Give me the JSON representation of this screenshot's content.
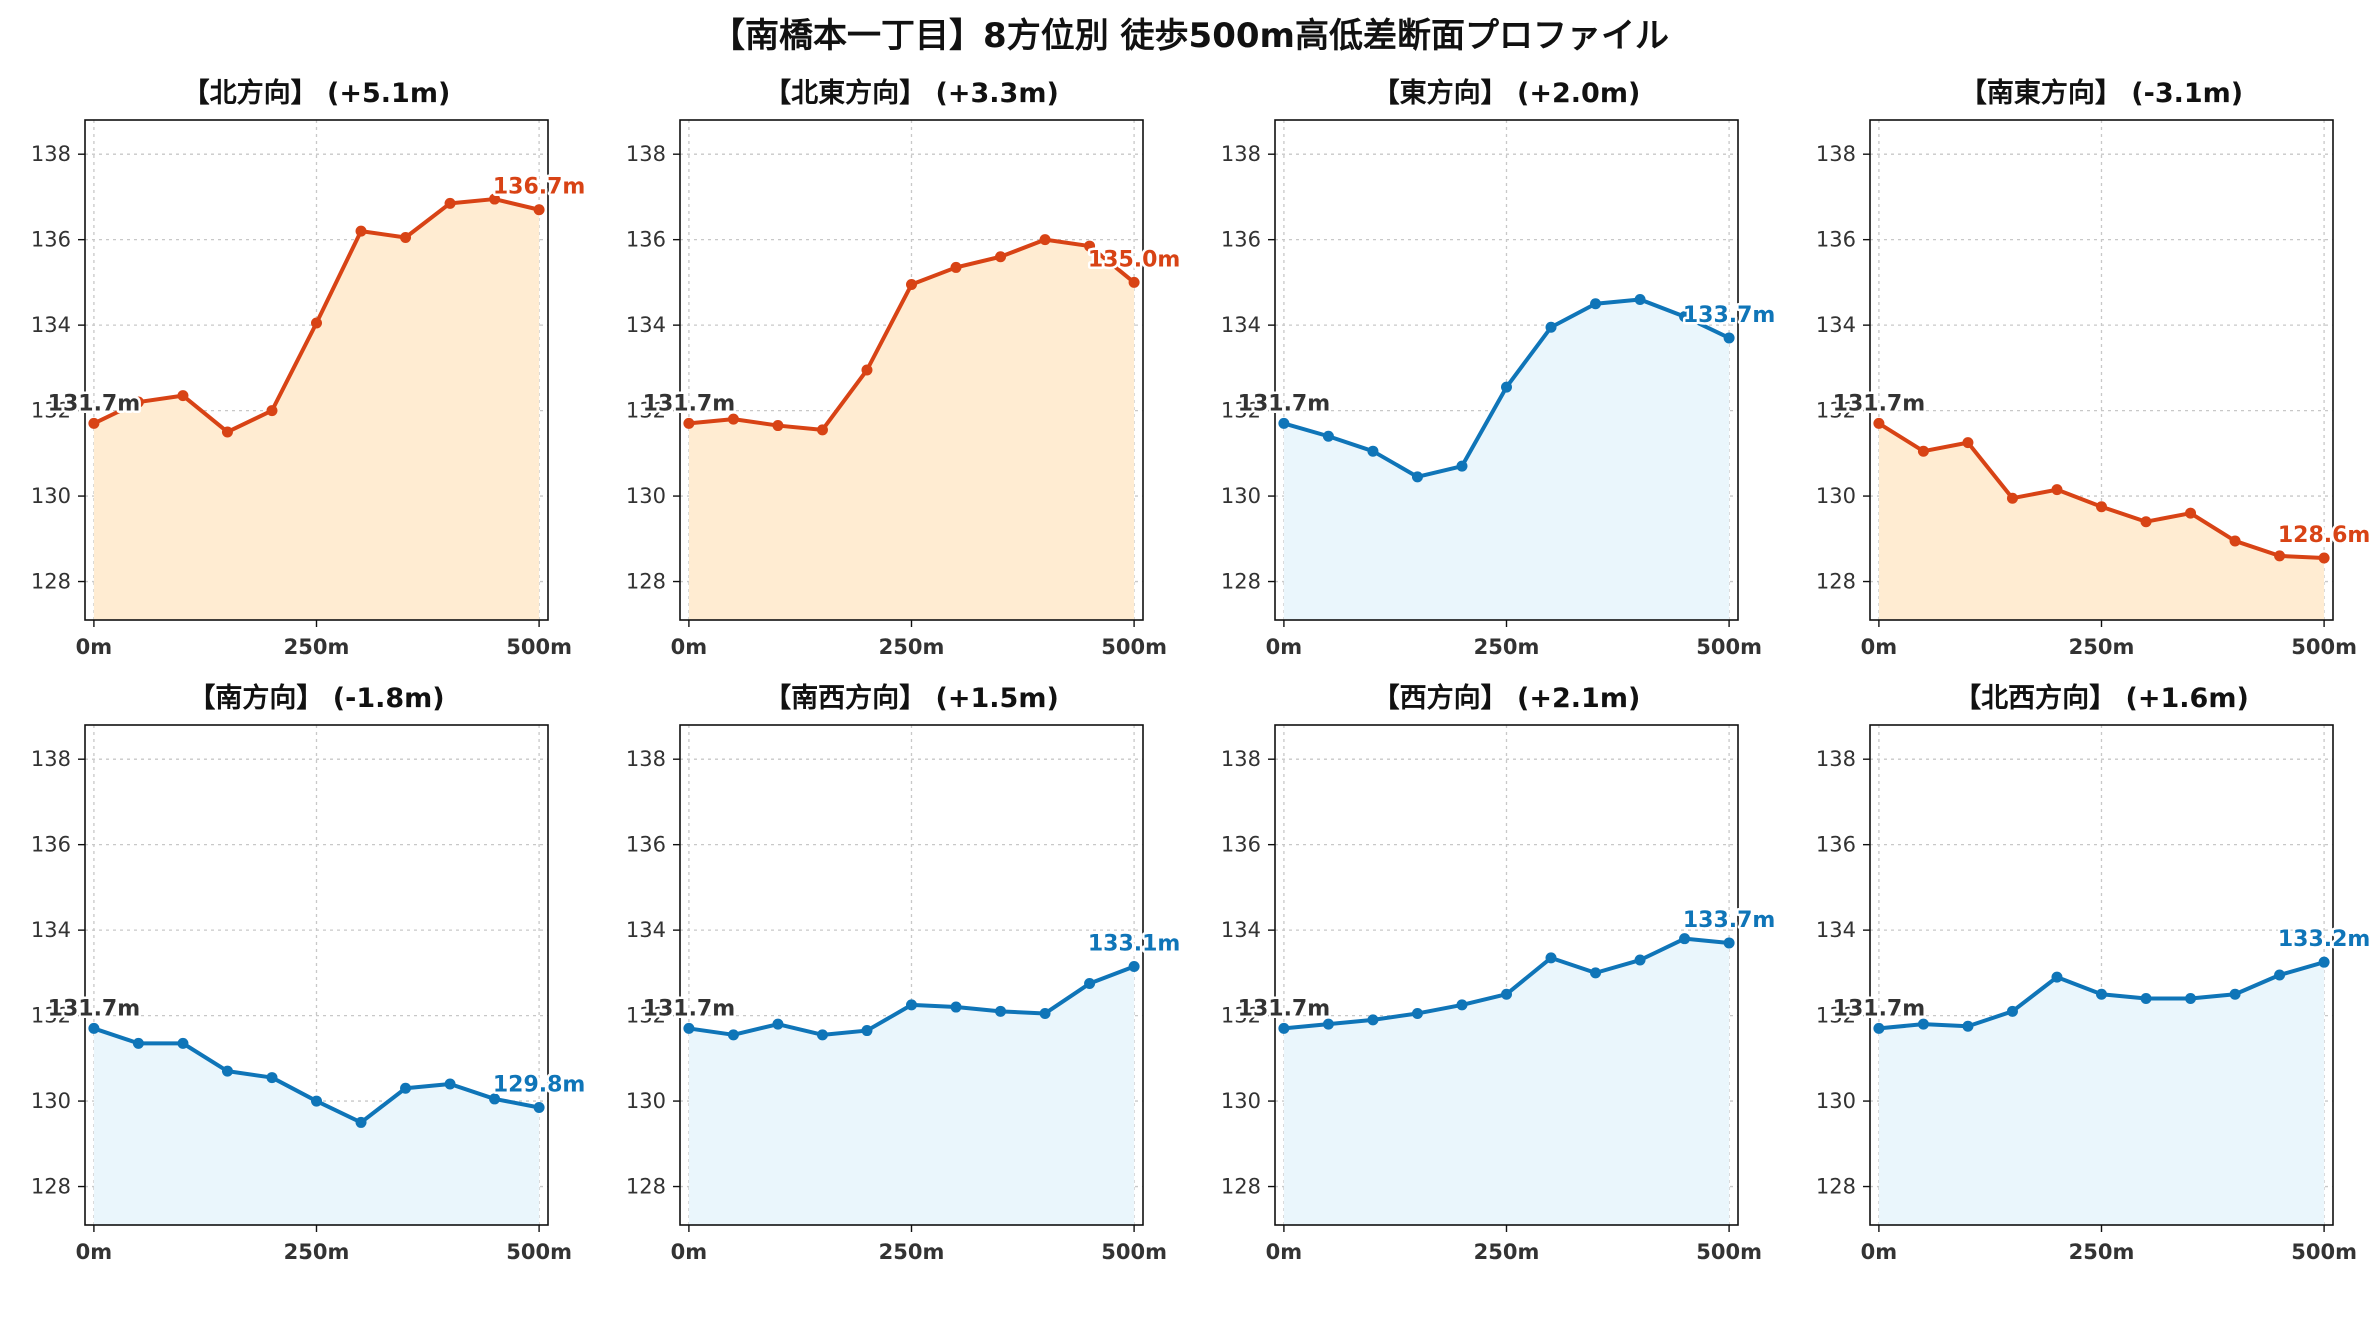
{
  "title": "【南橋本一丁目】8方位別 徒歩500m高低差断面プロファイル",
  "colors": {
    "up_line": "#d84315",
    "up_fill": "#ffecd2",
    "down_line": "#0f75b8",
    "down_fill": "#eaf6fc",
    "start_label": "#333333",
    "grid": "#c8c8c8"
  },
  "chart_data": [
    {
      "type": "area",
      "title": "【北方向】 (+5.1m)",
      "trend": "up",
      "x": [
        0,
        50,
        100,
        150,
        200,
        250,
        300,
        350,
        400,
        450,
        500
      ],
      "y": [
        131.7,
        132.2,
        132.35,
        131.5,
        132.0,
        134.05,
        136.2,
        136.05,
        136.85,
        136.95,
        136.7
      ],
      "start_label": "131.7m",
      "end_label": "136.7m",
      "ylim": [
        127.1,
        138.8
      ],
      "yticks": [
        "128",
        "130",
        "132",
        "134",
        "136",
        "138"
      ],
      "xticks": [
        "0m",
        "250m",
        "500m"
      ],
      "grid": true
    },
    {
      "type": "area",
      "title": "【北東方向】 (+3.3m)",
      "trend": "up",
      "x": [
        0,
        50,
        100,
        150,
        200,
        250,
        300,
        350,
        400,
        450,
        500
      ],
      "y": [
        131.7,
        131.8,
        131.65,
        131.55,
        132.95,
        134.95,
        135.35,
        135.6,
        136.0,
        135.85,
        135.0
      ],
      "start_label": "131.7m",
      "end_label": "135.0m",
      "ylim": [
        127.1,
        138.8
      ],
      "yticks": [
        "128",
        "130",
        "132",
        "134",
        "136",
        "138"
      ],
      "xticks": [
        "0m",
        "250m",
        "500m"
      ],
      "grid": true
    },
    {
      "type": "area",
      "title": "【東方向】 (+2.0m)",
      "trend": "down",
      "x": [
        0,
        50,
        100,
        150,
        200,
        250,
        300,
        350,
        400,
        450,
        500
      ],
      "y": [
        131.7,
        131.4,
        131.05,
        130.45,
        130.7,
        132.55,
        133.95,
        134.5,
        134.6,
        134.2,
        133.7
      ],
      "start_label": "131.7m",
      "end_label": "133.7m",
      "ylim": [
        127.1,
        138.8
      ],
      "yticks": [
        "128",
        "130",
        "132",
        "134",
        "136",
        "138"
      ],
      "xticks": [
        "0m",
        "250m",
        "500m"
      ],
      "grid": true
    },
    {
      "type": "area",
      "title": "【南東方向】 (-3.1m)",
      "trend": "up",
      "x": [
        0,
        50,
        100,
        150,
        200,
        250,
        300,
        350,
        400,
        450,
        500
      ],
      "y": [
        131.7,
        131.05,
        131.25,
        129.95,
        130.15,
        129.75,
        129.4,
        129.6,
        128.95,
        128.6,
        128.55
      ],
      "start_label": "131.7m",
      "end_label": "128.6m",
      "ylim": [
        127.1,
        138.8
      ],
      "yticks": [
        "128",
        "130",
        "132",
        "134",
        "136",
        "138"
      ],
      "xticks": [
        "0m",
        "250m",
        "500m"
      ],
      "grid": true
    },
    {
      "type": "area",
      "title": "【南方向】 (-1.8m)",
      "trend": "down",
      "x": [
        0,
        50,
        100,
        150,
        200,
        250,
        300,
        350,
        400,
        450,
        500
      ],
      "y": [
        131.7,
        131.35,
        131.35,
        130.7,
        130.55,
        130.0,
        129.5,
        130.3,
        130.4,
        130.05,
        129.85
      ],
      "start_label": "131.7m",
      "end_label": "129.8m",
      "ylim": [
        127.1,
        138.8
      ],
      "yticks": [
        "128",
        "130",
        "132",
        "134",
        "136",
        "138"
      ],
      "xticks": [
        "0m",
        "250m",
        "500m"
      ],
      "grid": true
    },
    {
      "type": "area",
      "title": "【南西方向】 (+1.5m)",
      "trend": "down",
      "x": [
        0,
        50,
        100,
        150,
        200,
        250,
        300,
        350,
        400,
        450,
        500
      ],
      "y": [
        131.7,
        131.55,
        131.8,
        131.55,
        131.65,
        132.25,
        132.2,
        132.1,
        132.05,
        132.75,
        133.15
      ],
      "start_label": "131.7m",
      "end_label": "133.1m",
      "ylim": [
        127.1,
        138.8
      ],
      "yticks": [
        "128",
        "130",
        "132",
        "134",
        "136",
        "138"
      ],
      "xticks": [
        "0m",
        "250m",
        "500m"
      ],
      "grid": true
    },
    {
      "type": "area",
      "title": "【西方向】 (+2.1m)",
      "trend": "down",
      "x": [
        0,
        50,
        100,
        150,
        200,
        250,
        300,
        350,
        400,
        450,
        500
      ],
      "y": [
        131.7,
        131.8,
        131.9,
        132.05,
        132.25,
        132.5,
        133.35,
        133.0,
        133.3,
        133.8,
        133.7
      ],
      "start_label": "131.7m",
      "end_label": "133.7m",
      "ylim": [
        127.1,
        138.8
      ],
      "yticks": [
        "128",
        "130",
        "132",
        "134",
        "136",
        "138"
      ],
      "xticks": [
        "0m",
        "250m",
        "500m"
      ],
      "grid": true
    },
    {
      "type": "area",
      "title": "【北西方向】 (+1.6m)",
      "trend": "down",
      "x": [
        0,
        50,
        100,
        150,
        200,
        250,
        300,
        350,
        400,
        450,
        500
      ],
      "y": [
        131.7,
        131.8,
        131.75,
        132.1,
        132.9,
        132.5,
        132.4,
        132.4,
        132.5,
        132.95,
        133.25
      ],
      "start_label": "131.7m",
      "end_label": "133.2m",
      "ylim": [
        127.1,
        138.8
      ],
      "yticks": [
        "128",
        "130",
        "132",
        "134",
        "136",
        "138"
      ],
      "xticks": [
        "0m",
        "250m",
        "500m"
      ],
      "grid": true
    }
  ]
}
